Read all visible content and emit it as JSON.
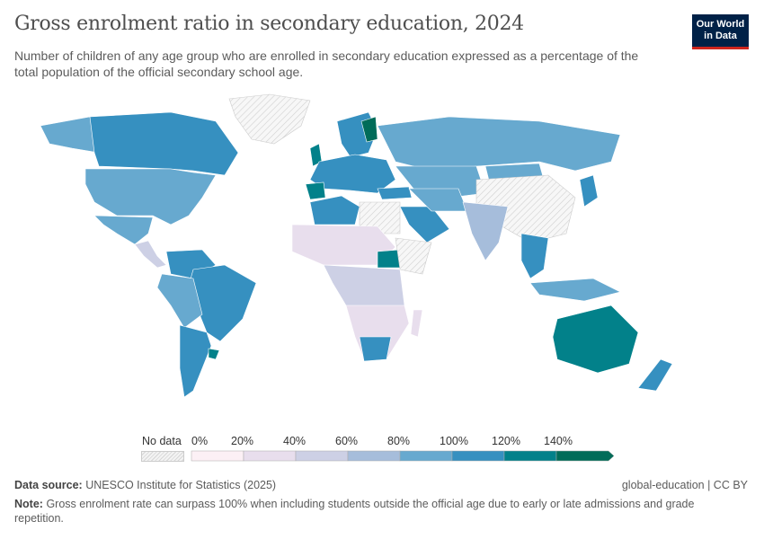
{
  "header": {
    "title": "Gross enrolment ratio in secondary education, 2024",
    "subtitle": "Number of children of any age group who are enrolled in secondary education expressed as a percentage of the total population of the official secondary school age.",
    "logo_text": "Our World in Data"
  },
  "legend": {
    "no_data_label": "No data",
    "ticks": [
      "0%",
      "20%",
      "40%",
      "60%",
      "80%",
      "100%",
      "120%",
      "140%"
    ],
    "bins": [
      {
        "range": "0-20%",
        "color": "#fcf0f5"
      },
      {
        "range": "20-40%",
        "color": "#e8deed"
      },
      {
        "range": "40-60%",
        "color": "#cdd0e5"
      },
      {
        "range": "60-80%",
        "color": "#a6bddb"
      },
      {
        "range": "80-100%",
        "color": "#67a9cf"
      },
      {
        "range": "100-120%",
        "color": "#3690c0"
      },
      {
        "range": "120-140%",
        "color": "#02818a"
      },
      {
        "range": ">140%",
        "color": "#016c59"
      }
    ]
  },
  "footer": {
    "source_label": "Data source:",
    "source": "UNESCO Institute for Statistics (2025)",
    "license": "global-education | CC BY",
    "note_label": "Note:",
    "note": "Gross enrolment rate can surpass 100% when including students outside the official age due to early or late admissions and grade repetition."
  }
}
